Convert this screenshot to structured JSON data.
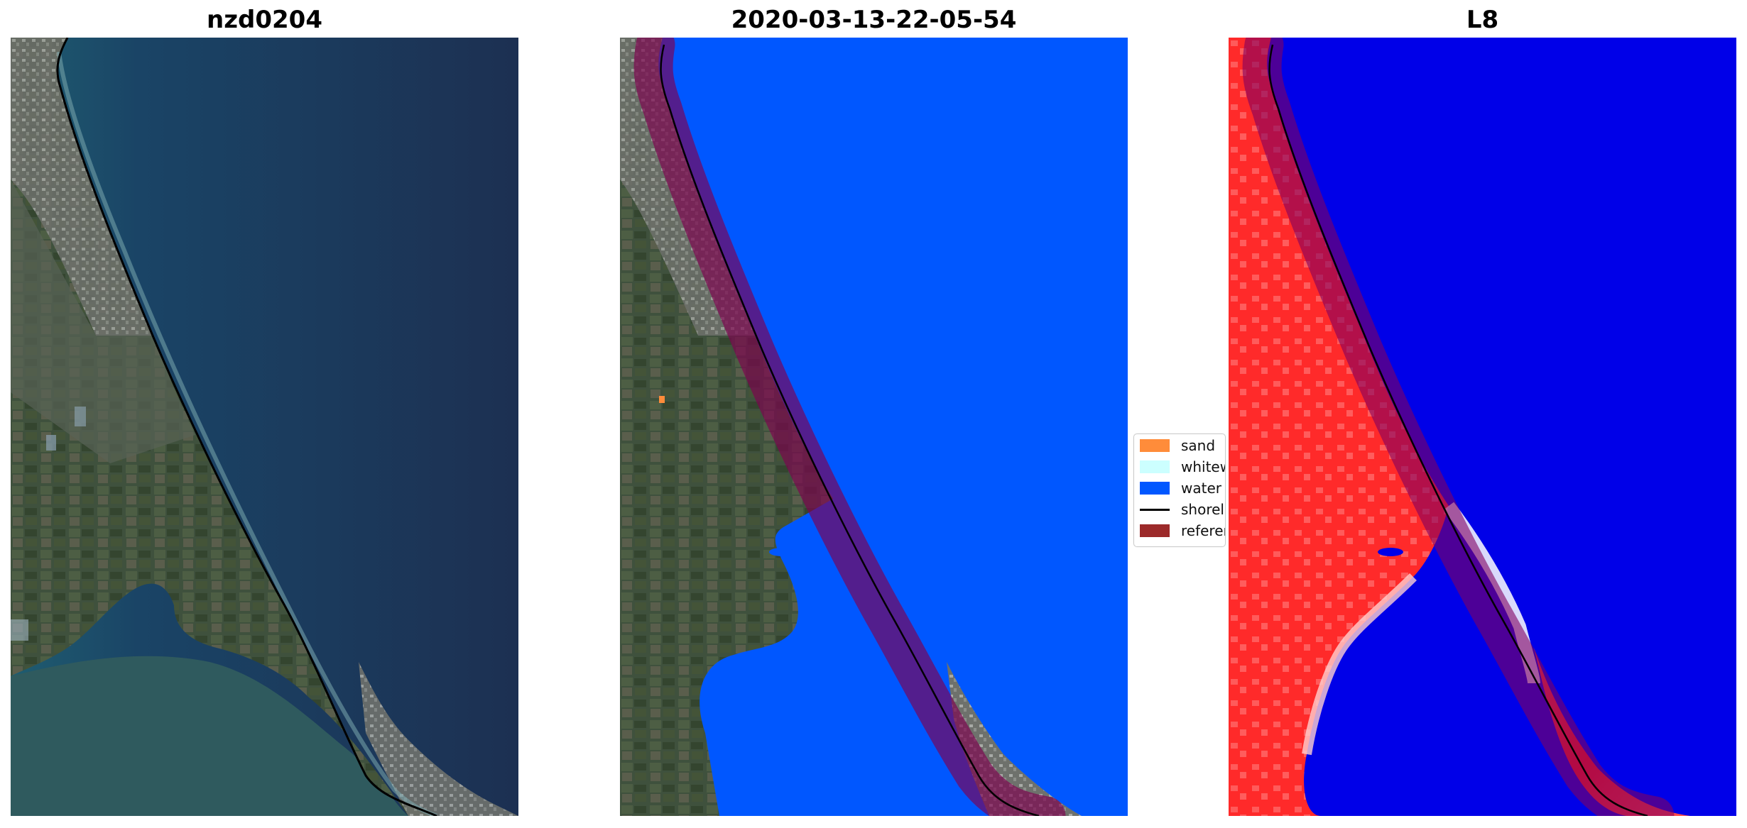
{
  "panels": [
    {
      "title": "nzd0204"
    },
    {
      "title": "2020-03-13-22-05-54"
    },
    {
      "title": "L8"
    }
  ],
  "legend": {
    "items": [
      {
        "label": "sand",
        "color": "#ff8c3a",
        "kind": "patch"
      },
      {
        "label": "whitew",
        "color": "#ccffff",
        "kind": "patch"
      },
      {
        "label": "water",
        "color": "#0057ff",
        "kind": "patch"
      },
      {
        "label": "shorel",
        "color": "#000000",
        "kind": "line"
      },
      {
        "label": "referen",
        "color": "#9c2a2a",
        "kind": "patch"
      }
    ]
  },
  "colors": {
    "ocean": "#1c3354",
    "nearshore": "#1f5a70",
    "land": "#4a5a45",
    "classified_water": "#0057ff",
    "buffer": "#800050",
    "index_land": "#ff2020",
    "index_water": "#0000e8"
  }
}
